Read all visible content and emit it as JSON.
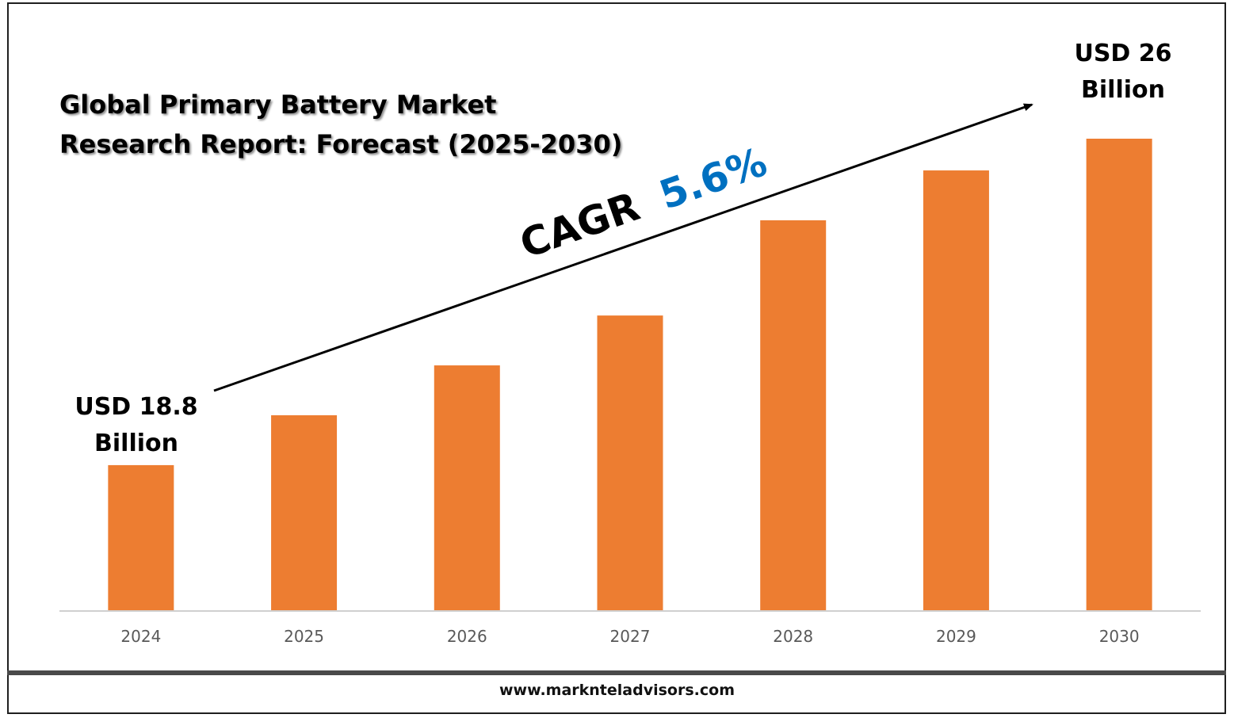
{
  "chart_data": {
    "type": "bar",
    "title": "Global Primary Battery Market\nResearch Report: Forecast (2025-2030)",
    "categories": [
      "2024",
      "2025",
      "2026",
      "2027",
      "2028",
      "2029",
      "2030"
    ],
    "values": [
      18.8,
      19.9,
      21.0,
      22.1,
      24.2,
      25.3,
      26.0
    ],
    "ylim": [
      15.6,
      26.0
    ],
    "bar_color": "#ED7D31",
    "annotations": {
      "start_label": [
        "USD 18.8",
        "Billion"
      ],
      "end_label": [
        "USD 26",
        "Billion"
      ],
      "cagr_prefix": "CAGR",
      "cagr_value": "5.6%",
      "cagr_color": "#0070C0"
    },
    "grid": false,
    "legend": "none"
  },
  "footer": {
    "url": "www.marknteladvisors.com"
  }
}
